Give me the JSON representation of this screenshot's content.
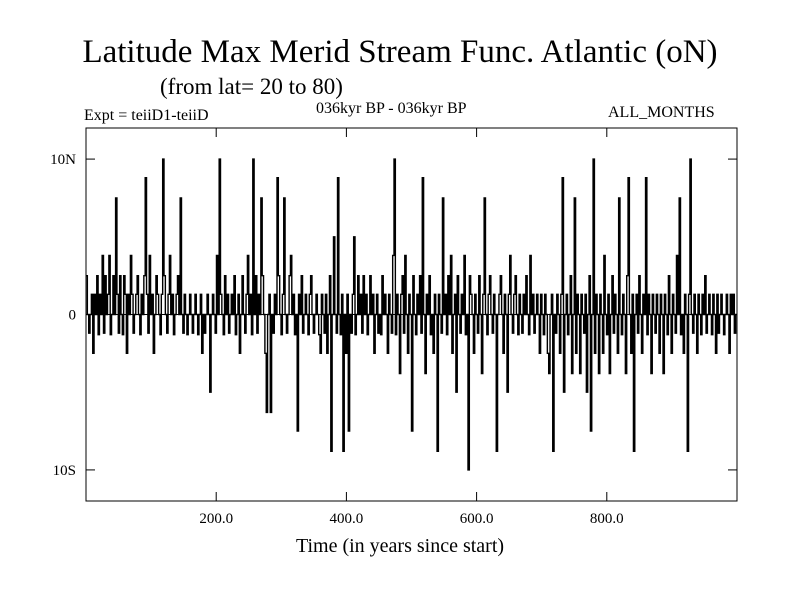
{
  "header": {
    "title": "Latitude Max Merid Stream Func. Atlantic (oN)",
    "subtitle": "(from lat= 20 to 80)",
    "expt": "Expt = teiiD1-teiiD",
    "period": "036kyr BP - 036kyr BP",
    "months": "ALL_MONTHS"
  },
  "chart_data": {
    "type": "line",
    "title": "Latitude Max Merid Stream Func. Atlantic (oN)",
    "subtitle": "(from lat= 20 to 80)",
    "xlabel": "Time (in years since start)",
    "ylabel": "",
    "xlim": [
      0,
      1000
    ],
    "ylim": [
      -12,
      12
    ],
    "x_ticks": [
      200,
      400,
      600,
      800
    ],
    "x_tick_labels": [
      "200.0",
      "400.0",
      "600.0",
      "800.0"
    ],
    "y_ticks": [
      10,
      0,
      -10
    ],
    "y_tick_labels": [
      "10N",
      "0",
      "10S"
    ],
    "grid": false,
    "series": [
      {
        "values": [
          2.5,
          0,
          -1.2,
          0,
          1.3,
          -2.5,
          1.3,
          0,
          2.5,
          -1.3,
          1.3,
          0,
          3.8,
          -1.2,
          2.5,
          0,
          1.3,
          3.8,
          -1.3,
          0,
          2.5,
          0,
          7.5,
          1.3,
          -1.2,
          2.5,
          0,
          -1.3,
          2.5,
          1.3,
          -2.5,
          1.3,
          0,
          3.8,
          1.3,
          -1.2,
          0,
          1.3,
          2.5,
          0,
          -1.3,
          1.3,
          0,
          2.5,
          8.8,
          1.3,
          -1.2,
          3.8,
          0,
          1.3,
          -2.5,
          0,
          2.5,
          1.3,
          0,
          -1.3,
          1.3,
          10,
          2.5,
          0,
          -1.2,
          1.3,
          3.8,
          0,
          1.3,
          -1.3,
          0,
          1.3,
          2.5,
          0,
          7.5,
          0,
          -1.2,
          1.3,
          0,
          -1.3,
          0,
          1.3,
          0,
          -1.2,
          0,
          1.3,
          0,
          -1.3,
          0,
          1.3,
          -2.5,
          0,
          -1.2,
          0,
          1.3,
          0,
          -5,
          0,
          1.3,
          0,
          -1.2,
          3.8,
          0,
          10,
          1.3,
          0,
          -1.3,
          2.5,
          0,
          1.3,
          -1.2,
          0,
          1.3,
          0,
          2.5,
          -1.3,
          0,
          1.3,
          -2.5,
          0,
          2.5,
          0,
          -1.2,
          1.3,
          3.8,
          0,
          1.3,
          -1.3,
          10,
          0,
          2.5,
          -1.2,
          1.3,
          0,
          7.5,
          2.5,
          0,
          -2.5,
          -6.3,
          0,
          1.3,
          -6.3,
          0,
          -1.2,
          1.3,
          0,
          8.8,
          2.5,
          0,
          -1.3,
          1.3,
          7.5,
          0,
          -1.2,
          0,
          2.5,
          3.8,
          0,
          1.3,
          -1.3,
          0,
          -7.5,
          1.3,
          0,
          2.5,
          -1.2,
          0,
          1.3,
          0,
          -1.3,
          1.3,
          2.5,
          0,
          -1.2,
          0,
          1.3,
          0,
          -1.3,
          -2.5,
          1.3,
          0,
          -1.2,
          1.3,
          -2.5,
          0,
          2.5,
          -8.8,
          0,
          5,
          0,
          -1.2,
          8.8,
          0,
          -1.3,
          1.3,
          -8.8,
          0,
          -2.5,
          1.3,
          -7.5,
          0,
          -1.2,
          1.3,
          5,
          -1.3,
          0,
          2.5,
          0,
          1.3,
          -1.2,
          2.5,
          0,
          1.3,
          -1.3,
          0,
          2.5,
          0,
          1.3,
          -2.5,
          0,
          1.3,
          -1.2,
          0,
          -1.3,
          2.5,
          0,
          1.3,
          0,
          -2.5,
          1.3,
          0,
          -1.2,
          3.8,
          10,
          -1.3,
          1.3,
          0,
          -3.8,
          1.3,
          2.5,
          -1.2,
          3.8,
          0,
          -2.5,
          1.3,
          0,
          -7.5,
          2.5,
          0,
          -1.3,
          1.3,
          0,
          2.5,
          -1.2,
          8.8,
          0,
          -3.8,
          1.3,
          0,
          2.5,
          -1.3,
          0,
          -2.5,
          1.3,
          0,
          -8.8,
          1.3,
          0,
          -1.2,
          7.5,
          0,
          1.3,
          -1.3,
          2.5,
          0,
          3.8,
          -2.5,
          0,
          1.3,
          -5,
          2.5,
          0,
          -1.2,
          1.3,
          0,
          3.8,
          -1.3,
          0,
          -10,
          2.5,
          1.3,
          0,
          -2.5,
          1.3,
          0,
          -1.2,
          2.5,
          0,
          -3.8,
          1.3,
          7.5,
          0,
          -1.3,
          1.3,
          2.5,
          0,
          -1.2,
          1.3,
          0,
          -8.8,
          0,
          1.3,
          2.5,
          0,
          -2.5,
          1.3,
          0,
          -5,
          1.3,
          3.8,
          0,
          -1.2,
          1.3,
          2.5,
          0,
          -1.3,
          1.3,
          0,
          -1.2,
          1.3,
          0,
          2.5,
          0,
          -1.3,
          3.8,
          0,
          1.3,
          -1.2,
          0,
          1.3,
          0,
          -2.5,
          1.3,
          0,
          -1.3,
          1.3,
          0,
          -2.5,
          -3.8,
          0,
          1.3,
          -8.8,
          0,
          -1.2,
          1.3,
          0,
          -2.5,
          1.3,
          8.8,
          -5,
          0,
          1.3,
          -1.3,
          0,
          2.5,
          -3.8,
          0,
          7.5,
          -2.5,
          1.3,
          0,
          -3.8,
          1.3,
          0,
          -1.2,
          1.3,
          -5,
          0,
          2.5,
          -7.5,
          0,
          10,
          -2.5,
          1.3,
          0,
          -3.8,
          1.3,
          0,
          -2.5,
          3.8,
          0,
          -1.3,
          1.3,
          -3.8,
          0,
          2.5,
          -1.2,
          1.3,
          0,
          -2.5,
          7.5,
          0,
          -1.3,
          1.3,
          0,
          -3.8,
          2.5,
          8.8,
          0,
          -2.5,
          1.3,
          -8.8,
          0,
          1.3,
          -1.2,
          2.5,
          0,
          -2.5,
          1.3,
          0,
          8.8,
          -1.3,
          1.3,
          0,
          -3.8,
          1.3,
          0,
          -1.2,
          1.3,
          0,
          -2.5,
          1.3,
          0,
          -3.8,
          1.3,
          0,
          -1.3,
          2.5,
          0,
          -2.5,
          1.3,
          0,
          -1.2,
          3.8,
          0,
          7.5,
          -1.3,
          0,
          -2.5,
          1.3,
          0,
          -8.8,
          1.3,
          10,
          0,
          -1.2,
          1.3,
          0,
          -2.5,
          1.3,
          0,
          -1.3,
          1.3,
          0,
          2.5,
          -1.2,
          0,
          1.3,
          0,
          -1.3,
          1.3,
          0,
          -2.5,
          1.3,
          -1.2,
          0,
          1.3,
          0,
          -1.3,
          0,
          1.3,
          0,
          -2.5,
          1.3,
          0,
          1.3,
          -1.2,
          0
        ],
        "x_range": [
          0,
          1000
        ],
        "color": "#000000"
      }
    ]
  }
}
